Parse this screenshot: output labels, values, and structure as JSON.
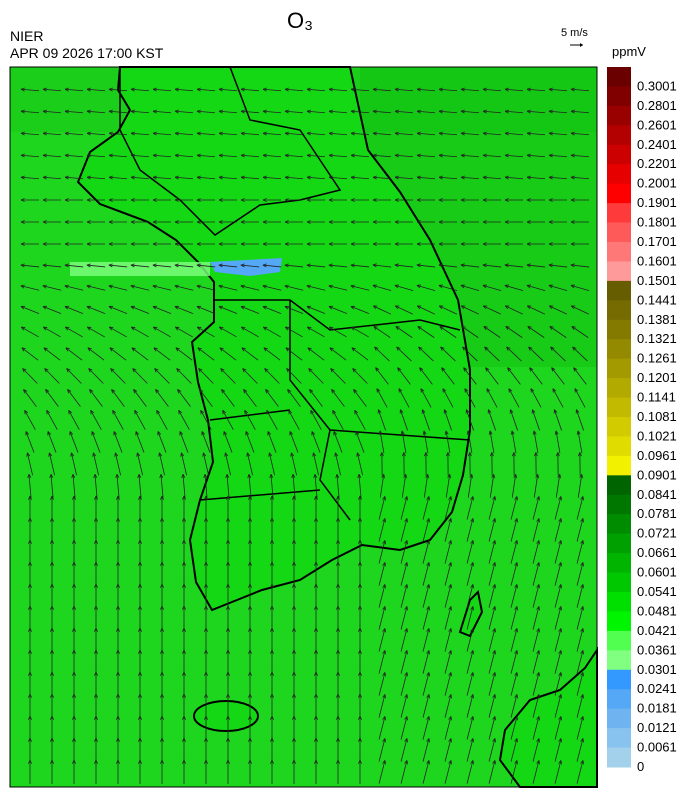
{
  "header": {
    "title": "O₃",
    "agency": "NIER",
    "timestamp": "APR 09 2026 17:00 KST",
    "wind_scale": "5 m/s"
  },
  "colorbar": {
    "unit": "ppmV",
    "levels": [
      {
        "label": "0.3001",
        "color": "#6b0000"
      },
      {
        "label": "0.2801",
        "color": "#800000"
      },
      {
        "label": "0.2601",
        "color": "#990000"
      },
      {
        "label": "0.2401",
        "color": "#b30000"
      },
      {
        "label": "0.2201",
        "color": "#cc0000"
      },
      {
        "label": "0.2001",
        "color": "#e60000"
      },
      {
        "label": "0.1901",
        "color": "#ff0000"
      },
      {
        "label": "0.1801",
        "color": "#ff3a3a"
      },
      {
        "label": "0.1701",
        "color": "#ff5a5a"
      },
      {
        "label": "0.1601",
        "color": "#ff7878"
      },
      {
        "label": "0.1501",
        "color": "#ff9a9a"
      },
      {
        "label": "0.1441",
        "color": "#665c00"
      },
      {
        "label": "0.1381",
        "color": "#756b00"
      },
      {
        "label": "0.1321",
        "color": "#857a00"
      },
      {
        "label": "0.1261",
        "color": "#948a00"
      },
      {
        "label": "0.1201",
        "color": "#a39a00"
      },
      {
        "label": "0.1141",
        "color": "#b3aa00"
      },
      {
        "label": "0.1081",
        "color": "#c2ba00"
      },
      {
        "label": "0.1021",
        "color": "#d1cb00"
      },
      {
        "label": "0.0961",
        "color": "#e0dc00"
      },
      {
        "label": "0.0901",
        "color": "#f2f200"
      },
      {
        "label": "0.0841",
        "color": "#006400"
      },
      {
        "label": "0.0781",
        "color": "#007800"
      },
      {
        "label": "0.0721",
        "color": "#008c00"
      },
      {
        "label": "0.0661",
        "color": "#00a000"
      },
      {
        "label": "0.0601",
        "color": "#00b400"
      },
      {
        "label": "0.0541",
        "color": "#00c800"
      },
      {
        "label": "0.0481",
        "color": "#00e000"
      },
      {
        "label": "0.0421",
        "color": "#00f500"
      },
      {
        "label": "0.0361",
        "color": "#50ff50"
      },
      {
        "label": "0.0301",
        "color": "#80ff80"
      },
      {
        "label": "0.0241",
        "color": "#3399ff"
      },
      {
        "label": "0.0181",
        "color": "#55a8f5"
      },
      {
        "label": "0.0121",
        "color": "#6fb4f0"
      },
      {
        "label": "0.0061",
        "color": "#88c2ee"
      },
      {
        "label": "0",
        "color": "#a3d0ea"
      }
    ]
  }
}
